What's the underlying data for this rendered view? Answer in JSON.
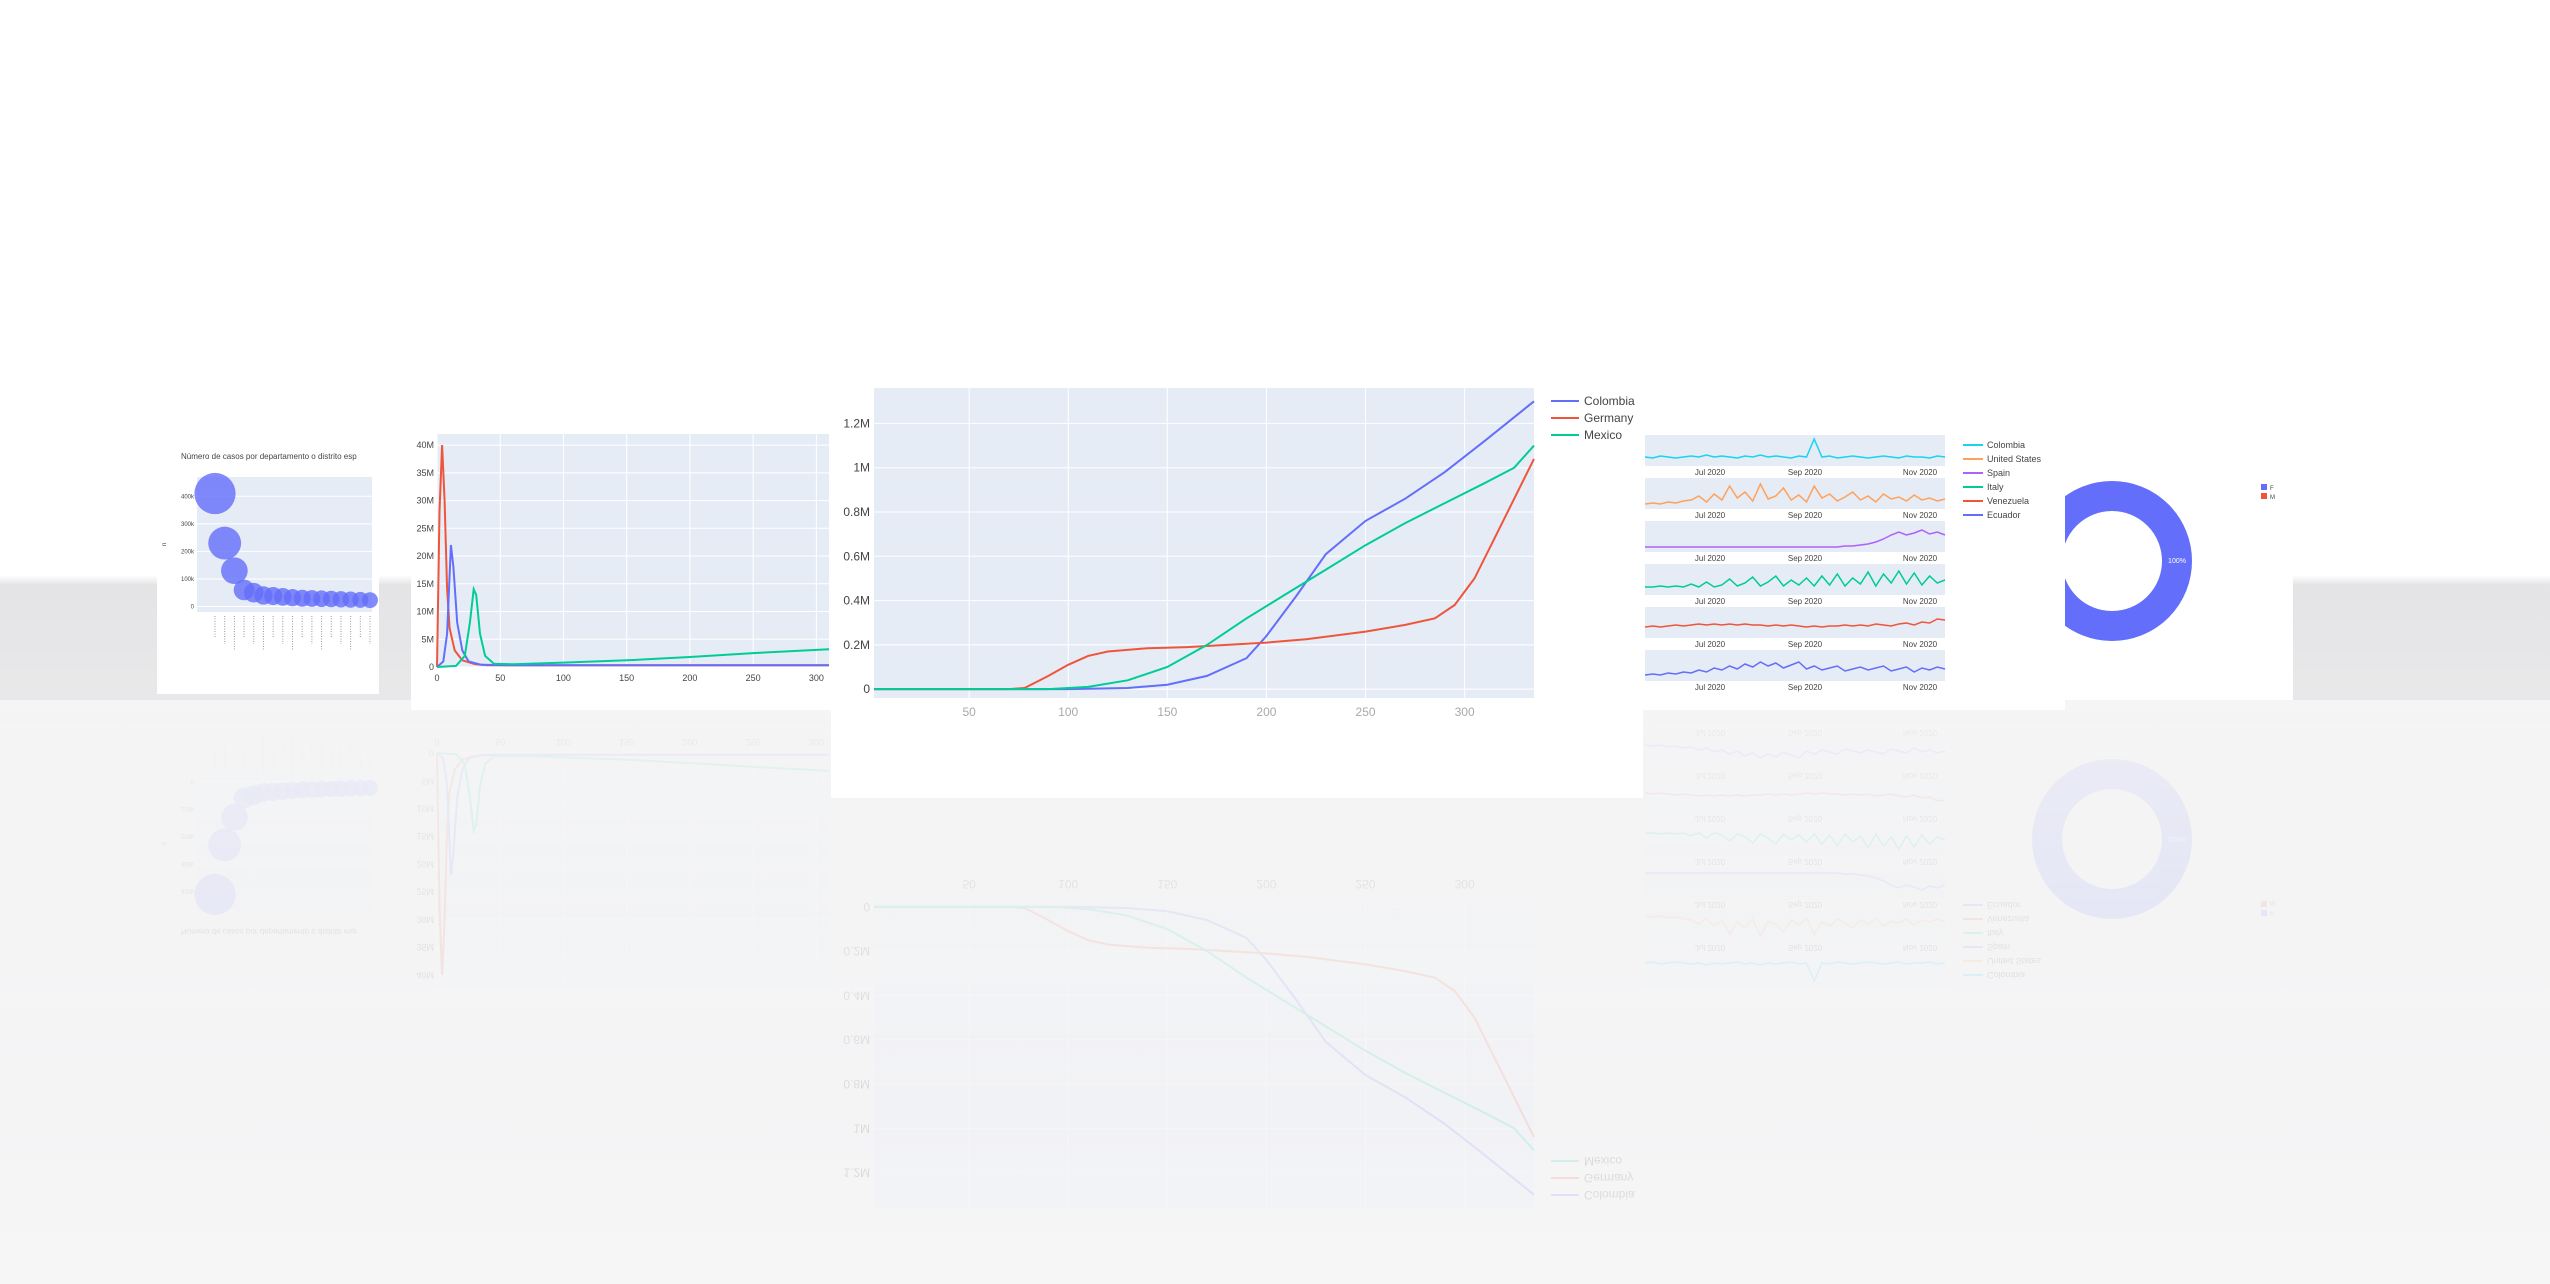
{
  "colors": {
    "plot_bg": "#e5ecf6",
    "grid": "#ffffff",
    "axis_text": "#444444",
    "blue": "#636efa",
    "red": "#ef553b",
    "green": "#00cc96",
    "purple": "#ab63fa",
    "orange": "#ffa15a",
    "cyan": "#19d3f3"
  },
  "panels": {
    "bubble_title": "Número de casos por departamento o distrito esp"
  },
  "chart_data": [
    {
      "id": "bubble",
      "type": "scatter",
      "title": "Número de casos por departamento o distrito esp",
      "ylabel": "n",
      "yticks": [
        0,
        100,
        200,
        300,
        400
      ],
      "yticklabels": [
        "0",
        "100k",
        "200k",
        "300k",
        "400k"
      ],
      "ylim": [
        -20,
        470
      ],
      "categories": [
        "c1",
        "c2",
        "c3",
        "c4",
        "c5",
        "c6",
        "c7",
        "c8",
        "c9",
        "c10",
        "c11",
        "c12",
        "c13",
        "c14",
        "c15",
        "c16",
        "c17"
      ],
      "values": [
        410,
        230,
        130,
        60,
        50,
        40,
        38,
        35,
        32,
        30,
        29,
        28,
        27,
        26,
        25,
        24,
        23
      ],
      "color": "#636efa"
    },
    {
      "id": "epidemic",
      "type": "line",
      "xticks": [
        0,
        50,
        100,
        150,
        200,
        250,
        300
      ],
      "xlim": [
        0,
        310
      ],
      "yticks": [
        0,
        5,
        10,
        15,
        20,
        25,
        30,
        35,
        40
      ],
      "yticklabels": [
        "0",
        "5M",
        "10M",
        "15M",
        "20M",
        "25M",
        "30M",
        "35M",
        "40M"
      ],
      "ylim": [
        0,
        42
      ],
      "series": [
        {
          "color": "#ef553b",
          "x": [
            0,
            2,
            4,
            6,
            8,
            10,
            14,
            20,
            30,
            40,
            60,
            310
          ],
          "y": [
            0,
            28,
            40,
            30,
            14,
            7,
            3,
            1.2,
            0.5,
            0.3,
            0.3,
            0.3
          ]
        },
        {
          "color": "#636efa",
          "x": [
            0,
            5,
            8,
            11,
            13,
            16,
            20,
            25,
            35,
            60,
            310
          ],
          "y": [
            0,
            1,
            6,
            22,
            18,
            8,
            3,
            1,
            0.4,
            0.3,
            0.3
          ]
        },
        {
          "color": "#00cc96",
          "x": [
            0,
            15,
            22,
            26,
            29,
            31,
            34,
            38,
            45,
            60,
            100,
            150,
            200,
            250,
            310
          ],
          "y": [
            0,
            0.2,
            2,
            8,
            14,
            13,
            6,
            2,
            0.6,
            0.5,
            0.8,
            1.2,
            1.8,
            2.5,
            3.2
          ]
        }
      ]
    },
    {
      "id": "cumulative",
      "type": "line",
      "xticks": [
        50,
        100,
        150,
        200,
        250,
        300
      ],
      "xlim": [
        2,
        335
      ],
      "yticks": [
        0,
        0.2,
        0.4,
        0.6,
        0.8,
        1.0,
        1.2
      ],
      "yticklabels": [
        "0",
        "0.2M",
        "0.4M",
        "0.6M",
        "0.8M",
        "1M",
        "1.2M"
      ],
      "ylim": [
        -0.04,
        1.36
      ],
      "legend": "top-right",
      "series": [
        {
          "name": "Colombia",
          "color": "#636efa",
          "x": [
            2,
            100,
            130,
            150,
            170,
            190,
            200,
            215,
            230,
            250,
            270,
            290,
            310,
            335
          ],
          "y": [
            0,
            0,
            0.005,
            0.02,
            0.06,
            0.14,
            0.24,
            0.42,
            0.61,
            0.76,
            0.86,
            0.98,
            1.12,
            1.3
          ]
        },
        {
          "name": "Germany",
          "color": "#ef553b",
          "x": [
            2,
            70,
            78,
            90,
            100,
            110,
            120,
            140,
            160,
            180,
            200,
            220,
            250,
            270,
            285,
            295,
            305,
            315,
            325,
            335
          ],
          "y": [
            0,
            0,
            0.005,
            0.06,
            0.11,
            0.15,
            0.17,
            0.185,
            0.19,
            0.2,
            0.21,
            0.225,
            0.26,
            0.29,
            0.32,
            0.38,
            0.5,
            0.68,
            0.86,
            1.04
          ]
        },
        {
          "name": "Mexico",
          "color": "#00cc96",
          "x": [
            2,
            90,
            110,
            130,
            150,
            170,
            190,
            210,
            230,
            250,
            270,
            290,
            310,
            325,
            335
          ],
          "y": [
            0,
            0,
            0.01,
            0.04,
            0.1,
            0.2,
            0.32,
            0.43,
            0.54,
            0.65,
            0.75,
            0.84,
            0.93,
            1.0,
            1.1
          ]
        }
      ]
    },
    {
      "id": "daily",
      "type": "line",
      "xticklabels": [
        "Jul 2020",
        "Sep 2020",
        "Nov 2020"
      ],
      "legend": "right",
      "series": [
        {
          "name": "Colombia",
          "color": "#19d3f3",
          "values": [
            6,
            5,
            7,
            6,
            5,
            6,
            7,
            6,
            8,
            6,
            7,
            6,
            5,
            7,
            6,
            8,
            6,
            7,
            6,
            5,
            7,
            6,
            24,
            6,
            7,
            5,
            6,
            7,
            6,
            5,
            6,
            7,
            6,
            5,
            7,
            6,
            6,
            5,
            7,
            6
          ]
        },
        {
          "name": "United States",
          "color": "#ffa15a",
          "values": [
            2,
            3,
            2,
            4,
            3,
            5,
            6,
            10,
            4,
            12,
            6,
            20,
            8,
            14,
            5,
            22,
            7,
            10,
            18,
            6,
            11,
            4,
            20,
            8,
            12,
            5,
            9,
            14,
            6,
            10,
            4,
            12,
            7,
            9,
            5,
            11,
            6,
            8,
            5,
            7
          ]
        },
        {
          "name": "Spain",
          "color": "#ab63fa",
          "values": [
            2,
            2,
            2,
            2,
            2,
            2,
            2,
            2,
            2,
            2,
            2,
            2,
            2,
            2,
            2,
            2,
            2,
            2,
            2,
            2,
            2,
            2,
            2,
            2,
            2,
            2,
            3,
            3,
            4,
            5,
            7,
            10,
            14,
            17,
            14,
            16,
            19,
            15,
            17,
            14
          ]
        },
        {
          "name": "Italy",
          "color": "#00cc96",
          "values": [
            5,
            5,
            6,
            5,
            6,
            5,
            8,
            5,
            10,
            5,
            7,
            13,
            6,
            9,
            15,
            6,
            10,
            16,
            6,
            12,
            7,
            14,
            6,
            16,
            7,
            18,
            6,
            14,
            8,
            20,
            6,
            18,
            9,
            21,
            8,
            19,
            7,
            16,
            9,
            12
          ]
        },
        {
          "name": "Venezuela",
          "color": "#ef553b",
          "values": [
            8,
            9,
            8,
            9,
            10,
            9,
            10,
            11,
            10,
            11,
            10,
            11,
            10,
            11,
            10,
            10,
            9,
            10,
            9,
            10,
            9,
            8,
            9,
            8,
            9,
            9,
            10,
            9,
            10,
            9,
            11,
            10,
            9,
            11,
            12,
            10,
            13,
            12,
            16,
            15
          ]
        },
        {
          "name": "Ecuador",
          "color": "#636efa",
          "values": [
            3,
            4,
            3,
            5,
            4,
            6,
            5,
            8,
            6,
            10,
            8,
            12,
            9,
            14,
            11,
            16,
            12,
            15,
            10,
            13,
            16,
            9,
            12,
            8,
            10,
            12,
            7,
            9,
            11,
            8,
            10,
            12,
            7,
            9,
            11,
            6,
            10,
            8,
            11,
            9
          ]
        }
      ]
    },
    {
      "id": "donut",
      "type": "pie",
      "labels": [
        "F",
        "M"
      ],
      "values": [
        100,
        0
      ],
      "slice_text": "100%",
      "colors": [
        "#636efa",
        "#ef553b"
      ],
      "legend": "top-right"
    }
  ]
}
